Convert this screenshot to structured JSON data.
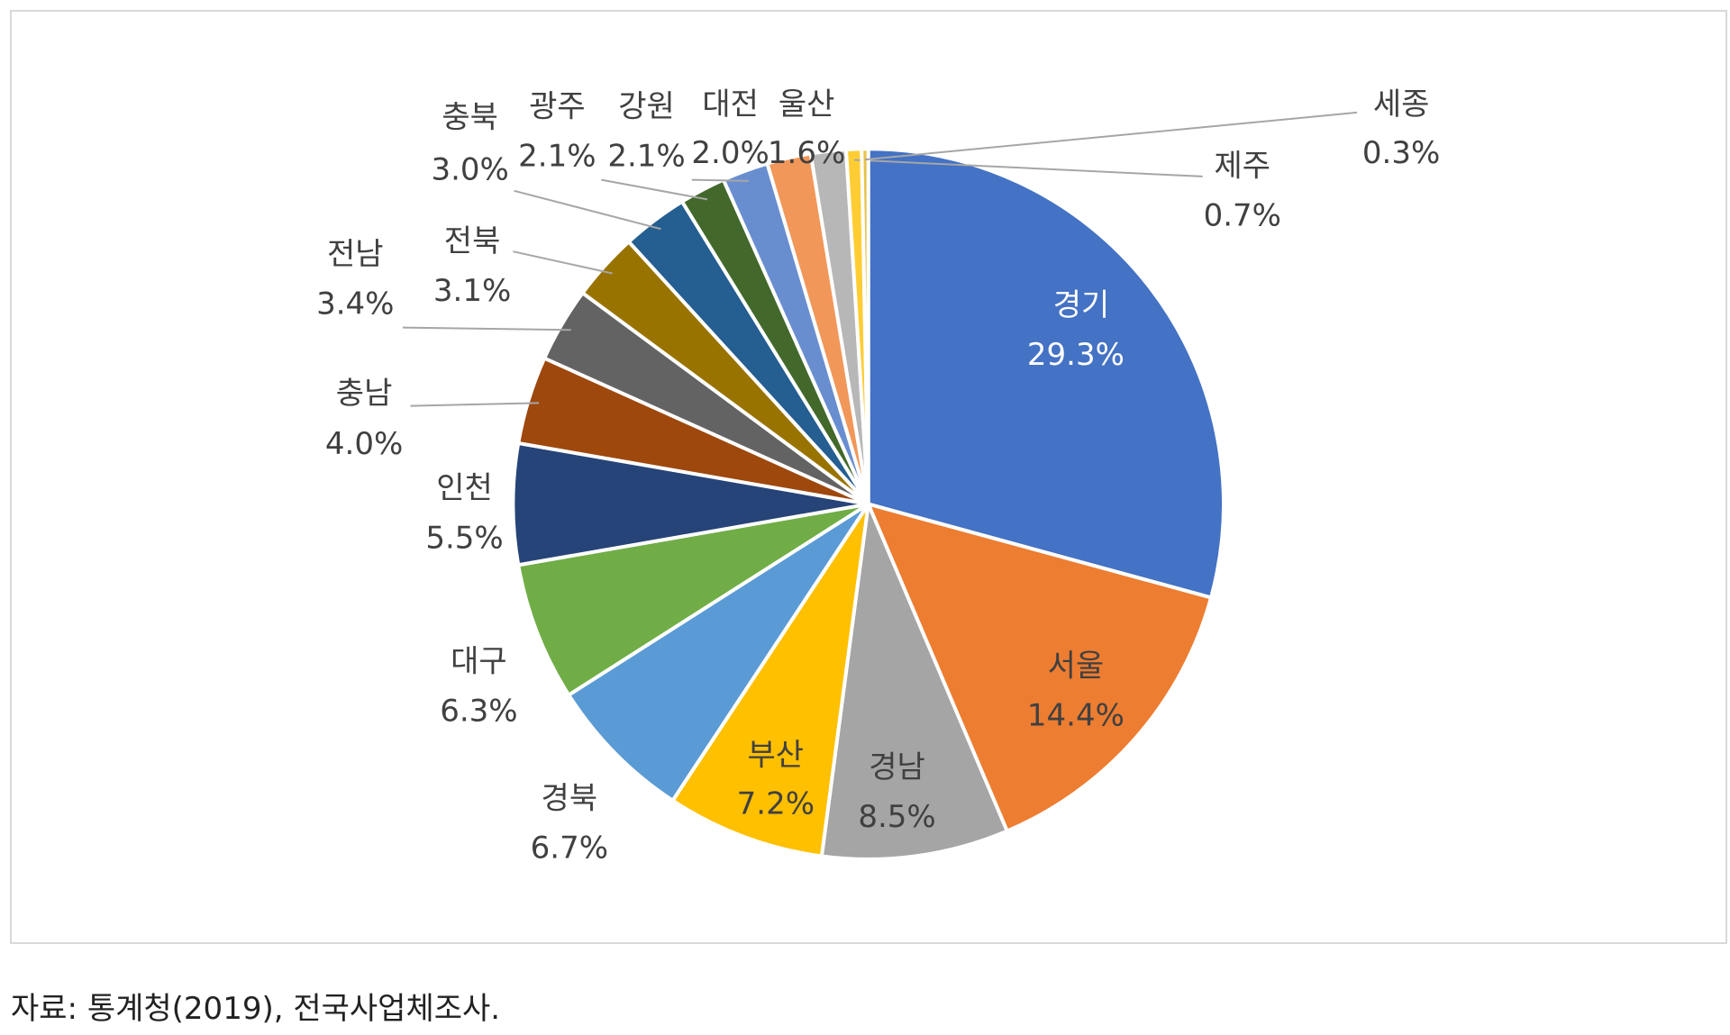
{
  "chart_data": {
    "type": "pie",
    "categories": [
      "경기",
      "서울",
      "경남",
      "부산",
      "경북",
      "대구",
      "인천",
      "충남",
      "전남",
      "전북",
      "충북",
      "광주",
      "강원",
      "대전",
      "울산",
      "제주",
      "세종"
    ],
    "values": [
      29.3,
      14.4,
      8.5,
      7.2,
      6.7,
      6.3,
      5.5,
      4.0,
      3.4,
      3.1,
      3.0,
      2.1,
      2.1,
      2.0,
      1.6,
      0.7,
      0.3
    ],
    "value_labels": [
      "29.3%",
      "14.4%",
      "8.5%",
      "7.2%",
      "6.7%",
      "6.3%",
      "5.5%",
      "4.0%",
      "3.4%",
      "3.1%",
      "3.0%",
      "2.1%",
      "2.1%",
      "2.0%",
      "1.6%",
      "0.7%",
      "0.3%"
    ],
    "colors": [
      "#4472c4",
      "#ed7d31",
      "#a5a5a5",
      "#ffc000",
      "#5b9bd5",
      "#70ad47",
      "#264478",
      "#9e480e",
      "#636363",
      "#997300",
      "#255e91",
      "#43682b",
      "#698ed0",
      "#f1975a",
      "#b7b7b7",
      "#ffcd33",
      "#e8c34a"
    ],
    "note": "자료: 통계청(2019), 전국사업체조사."
  }
}
